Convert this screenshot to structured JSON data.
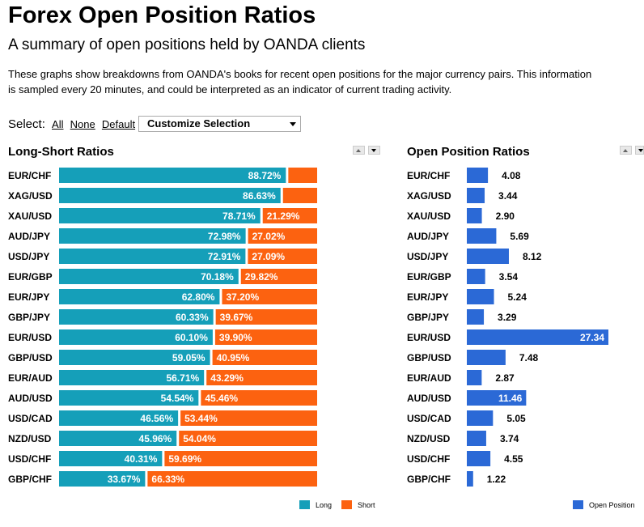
{
  "header": {
    "title": "Forex Open Position Ratios",
    "subtitle": "A summary of open positions held by OANDA clients",
    "description_line1": "These graphs show breakdowns from OANDA's books for recent open positions for the major currency pairs. This information",
    "description_line2": "is sampled every 20 minutes, and could be interpreted as an indicator of current trading activity."
  },
  "selection": {
    "label": "Select:",
    "all": "All",
    "none": "None",
    "default": "Default",
    "dropdown_value": "Customize Selection"
  },
  "colors": {
    "long": "#159fb9",
    "short": "#fc6210",
    "open": "#2b69d6"
  },
  "chart_data": [
    {
      "type": "bar",
      "orientation": "horizontal",
      "stacked": true,
      "title": "Long-Short Ratios",
      "categories": [
        "EUR/CHF",
        "XAG/USD",
        "XAU/USD",
        "AUD/JPY",
        "USD/JPY",
        "EUR/GBP",
        "EUR/JPY",
        "GBP/JPY",
        "EUR/USD",
        "GBP/USD",
        "EUR/AUD",
        "AUD/USD",
        "USD/CAD",
        "NZD/USD",
        "USD/CHF",
        "GBP/CHF"
      ],
      "series": [
        {
          "name": "Long",
          "values": [
            88.72,
            86.63,
            78.71,
            72.98,
            72.91,
            70.18,
            62.8,
            60.33,
            60.1,
            59.05,
            56.71,
            54.54,
            46.56,
            45.96,
            40.31,
            33.67
          ]
        },
        {
          "name": "Short",
          "values": [
            11.28,
            13.37,
            21.29,
            27.02,
            27.09,
            29.82,
            37.2,
            39.67,
            39.9,
            40.95,
            43.29,
            45.46,
            53.44,
            54.04,
            59.69,
            66.33
          ]
        }
      ],
      "labels_long": [
        "88.72%",
        "86.63%",
        "78.71%",
        "72.98%",
        "72.91%",
        "70.18%",
        "62.80%",
        "60.33%",
        "60.10%",
        "59.05%",
        "56.71%",
        "54.54%",
        "46.56%",
        "45.96%",
        "40.31%",
        "33.67%"
      ],
      "labels_short": [
        "",
        "",
        "21.29%",
        "27.02%",
        "27.09%",
        "29.82%",
        "37.20%",
        "39.67%",
        "39.90%",
        "40.95%",
        "43.29%",
        "45.46%",
        "53.44%",
        "54.04%",
        "59.69%",
        "66.33%"
      ],
      "xlim": [
        0,
        100
      ],
      "legend": "bottom-right"
    },
    {
      "type": "bar",
      "orientation": "horizontal",
      "title": "Open Position Ratios",
      "categories": [
        "EUR/CHF",
        "XAG/USD",
        "XAU/USD",
        "AUD/JPY",
        "USD/JPY",
        "EUR/GBP",
        "EUR/JPY",
        "GBP/JPY",
        "EUR/USD",
        "GBP/USD",
        "EUR/AUD",
        "AUD/USD",
        "USD/CAD",
        "NZD/USD",
        "USD/CHF",
        "GBP/CHF"
      ],
      "series": [
        {
          "name": "Open Position",
          "values": [
            4.08,
            3.44,
            2.9,
            5.69,
            8.12,
            3.54,
            5.24,
            3.29,
            27.34,
            7.48,
            2.87,
            11.46,
            5.05,
            3.74,
            4.55,
            1.22
          ]
        }
      ],
      "value_labels": [
        "4.08",
        "3.44",
        "2.90",
        "5.69",
        "8.12",
        "3.54",
        "5.24",
        "3.29",
        "27.34",
        "7.48",
        "2.87",
        "11.46",
        "5.05",
        "3.74",
        "4.55",
        "1.22"
      ],
      "xlim": [
        0,
        27.34
      ],
      "legend": "bottom-right"
    }
  ]
}
